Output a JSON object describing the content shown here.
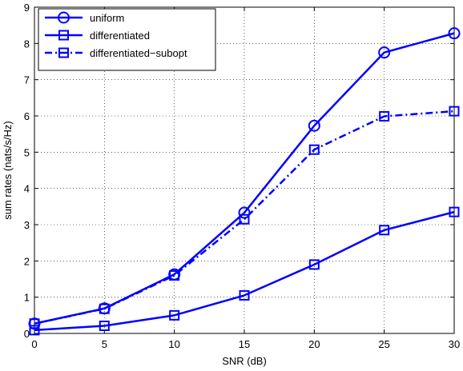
{
  "chart_data": {
    "type": "line",
    "xlabel": "SNR (dB)",
    "ylabel": "sum rates (nats/s/Hz)",
    "xlim": [
      0,
      30
    ],
    "ylim": [
      0,
      9
    ],
    "xticks": [
      "0",
      "5",
      "10",
      "15",
      "20",
      "25",
      "30"
    ],
    "yticks": [
      "0",
      "1",
      "2",
      "3",
      "4",
      "5",
      "6",
      "7",
      "8",
      "9"
    ],
    "grid": "on (dotted)",
    "legend_position": "top-left",
    "line_color": "#0000ff",
    "x": [
      0,
      5,
      10,
      15,
      20,
      25,
      30
    ],
    "series": [
      {
        "name": "uniform",
        "marker": "circle",
        "linestyle": "solid",
        "values": [
          0.27,
          0.69,
          1.63,
          3.33,
          5.73,
          7.75,
          8.28
        ]
      },
      {
        "name": "differentiated",
        "marker": "square",
        "linestyle": "solid",
        "values": [
          0.09,
          0.21,
          0.5,
          1.05,
          1.9,
          2.85,
          3.35
        ]
      },
      {
        "name": "differentiated−subopt",
        "marker": "square",
        "linestyle": "dashdot",
        "values": [
          0.27,
          0.68,
          1.6,
          3.15,
          5.07,
          5.99,
          6.13
        ]
      }
    ]
  }
}
